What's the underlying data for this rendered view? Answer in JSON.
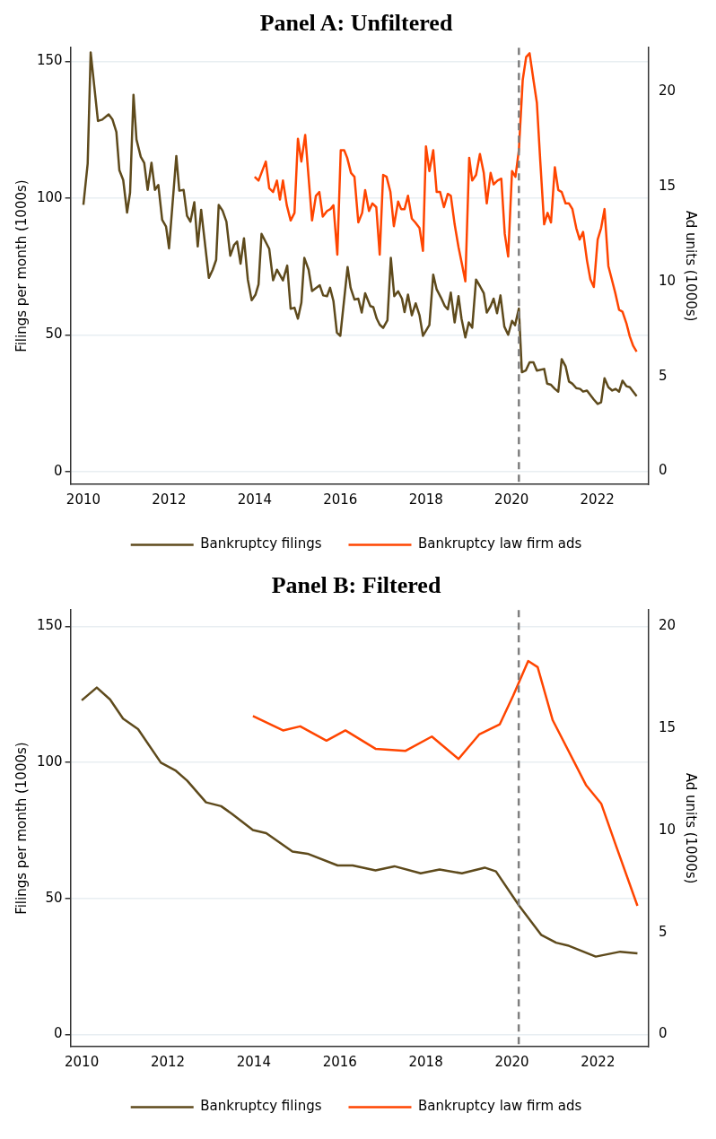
{
  "chart_data": [
    {
      "type": "line",
      "title": "Panel A: Unfiltered",
      "ylabel": "Filings per month (1000s)",
      "y2label": "Ad units (1000s)",
      "xlim": [
        2009.7,
        2023.2
      ],
      "xticks": [
        2010,
        2012,
        2014,
        2016,
        2018,
        2020,
        2022
      ],
      "ylim": [
        -4.7,
        155
      ],
      "yticks": [
        0,
        50,
        100,
        150
      ],
      "y2lim": [
        -0.68,
        22.29
      ],
      "y2ticks": [
        0,
        5,
        10,
        15,
        20
      ],
      "grid": "y",
      "legend": "bottom",
      "marker": "none",
      "line_style": "solid",
      "ref_lines": [
        {
          "axis": "x",
          "value": 2020.17,
          "color": "#7f7f7f",
          "line_style": "dashed"
        }
      ],
      "series": [
        {
          "name": "Bankruptcy filings",
          "color": "#5e4a1c",
          "x": [
            2010.0,
            2010.1,
            2010.17,
            2010.34,
            2010.44,
            2010.59,
            2010.68,
            2010.77,
            2010.84,
            2010.93,
            2011.02,
            2011.09,
            2011.17,
            2011.24,
            2011.34,
            2011.42,
            2011.5,
            2011.59,
            2011.67,
            2011.75,
            2011.84,
            2011.93,
            2012.0,
            2012.17,
            2012.24,
            2012.34,
            2012.42,
            2012.5,
            2012.59,
            2012.67,
            2012.75,
            2012.93,
            2013.02,
            2013.1,
            2013.16,
            2013.25,
            2013.34,
            2013.43,
            2013.52,
            2013.59,
            2013.67,
            2013.75,
            2013.84,
            2013.93,
            2014.02,
            2014.09,
            2014.16,
            2014.34,
            2014.43,
            2014.52,
            2014.66,
            2014.76,
            2014.84,
            2014.93,
            2015.01,
            2015.09,
            2015.16,
            2015.26,
            2015.34,
            2015.52,
            2015.6,
            2015.69,
            2015.76,
            2015.84,
            2015.92,
            2016.0,
            2016.17,
            2016.24,
            2016.33,
            2016.42,
            2016.5,
            2016.58,
            2016.7,
            2016.77,
            2016.85,
            2016.92,
            2017.0,
            2017.1,
            2017.18,
            2017.26,
            2017.35,
            2017.44,
            2017.5,
            2017.58,
            2017.67,
            2017.76,
            2017.85,
            2017.93,
            2018.08,
            2018.17,
            2018.25,
            2018.35,
            2018.44,
            2018.51,
            2018.58,
            2018.67,
            2018.76,
            2018.83,
            2018.92,
            2019.0,
            2019.08,
            2019.17,
            2019.26,
            2019.35,
            2019.42,
            2019.51,
            2019.58,
            2019.66,
            2019.74,
            2019.83,
            2019.92,
            2020.01,
            2020.08,
            2020.17,
            2020.24,
            2020.33,
            2020.42,
            2020.51,
            2020.59,
            2020.76,
            2020.83,
            2020.92,
            2021.01,
            2021.09,
            2021.17,
            2021.26,
            2021.34,
            2021.42,
            2021.51,
            2021.6,
            2021.67,
            2021.76,
            2021.92,
            2022.01,
            2022.09,
            2022.17,
            2022.26,
            2022.35,
            2022.43,
            2022.51,
            2022.59,
            2022.68,
            2022.76,
            2022.92
          ],
          "values": [
            97.5,
            112.6,
            153.3,
            128.2,
            128.7,
            130.6,
            128.7,
            124.2,
            110.2,
            106.6,
            94.7,
            102,
            137.8,
            121.4,
            115.1,
            112.9,
            103,
            112.9,
            103,
            104.8,
            92,
            89.6,
            81.6,
            115.4,
            102.7,
            103,
            93.5,
            91.4,
            98.5,
            82.3,
            95.7,
            70.8,
            73.8,
            77.4,
            97.5,
            95.4,
            91.4,
            78.9,
            82.9,
            84.1,
            76,
            85.3,
            70.2,
            62.6,
            64.7,
            68.4,
            86.9,
            81.4,
            69.9,
            73.8,
            69.9,
            75.3,
            59.5,
            59.9,
            55.9,
            61.7,
            78.1,
            73.8,
            66,
            68.1,
            64.4,
            64.1,
            67.2,
            62.3,
            50.8,
            49.6,
            74.8,
            67.2,
            62.9,
            63.2,
            58.1,
            65.2,
            60.5,
            60.1,
            55.9,
            53.7,
            52.5,
            55.3,
            78.1,
            64.1,
            65.9,
            63.2,
            58.3,
            64.7,
            57.1,
            61.5,
            57.1,
            49.6,
            53.6,
            72,
            66.6,
            63.6,
            60.5,
            59.3,
            65.4,
            54.5,
            64.1,
            55.9,
            49,
            54.5,
            52.6,
            70.2,
            67.8,
            65.2,
            58.1,
            60.5,
            63.2,
            57.9,
            64.4,
            53,
            50,
            55.1,
            53.5,
            59.6,
            36.3,
            36.9,
            39.9,
            39.9,
            36.9,
            37.5,
            32.1,
            31.7,
            30.2,
            29.2,
            41.1,
            38.5,
            32.9,
            32.1,
            30.5,
            30.2,
            29.2,
            29.6,
            26.3,
            24.7,
            25.3,
            34.1,
            30.8,
            29.6,
            30.2,
            29.2,
            33.2,
            31.2,
            30.8,
            27.5
          ]
        },
        {
          "name": "Bankruptcy law firm ads",
          "color": "#ff4500",
          "axis": "y2",
          "x": [
            2014.0,
            2014.09,
            2014.26,
            2014.34,
            2014.43,
            2014.52,
            2014.59,
            2014.66,
            2014.75,
            2014.84,
            2014.93,
            2015.01,
            2015.09,
            2015.18,
            2015.34,
            2015.43,
            2015.51,
            2015.59,
            2015.69,
            2015.77,
            2015.84,
            2015.93,
            2016.01,
            2016.09,
            2016.16,
            2016.25,
            2016.33,
            2016.42,
            2016.51,
            2016.58,
            2016.67,
            2016.75,
            2016.84,
            2016.92,
            2017.0,
            2017.08,
            2017.17,
            2017.25,
            2017.35,
            2017.42,
            2017.5,
            2017.58,
            2017.67,
            2017.75,
            2017.85,
            2017.93,
            2018.0,
            2018.08,
            2018.17,
            2018.25,
            2018.33,
            2018.42,
            2018.51,
            2018.58,
            2018.67,
            2018.76,
            2018.85,
            2018.92,
            2019.01,
            2019.08,
            2019.17,
            2019.26,
            2019.35,
            2019.42,
            2019.51,
            2019.58,
            2019.67,
            2019.76,
            2019.84,
            2019.92,
            2020.01,
            2020.09,
            2020.17,
            2020.26,
            2020.34,
            2020.42,
            2020.51,
            2020.59,
            2020.67,
            2020.76,
            2020.84,
            2020.92,
            2021.01,
            2021.09,
            2021.17,
            2021.26,
            2021.34,
            2021.42,
            2021.51,
            2021.59,
            2021.67,
            2021.76,
            2021.84,
            2021.92,
            2022.01,
            2022.09,
            2022.17,
            2022.26,
            2022.34,
            2022.42,
            2022.51,
            2022.59,
            2022.68,
            2022.76,
            2022.84,
            2022.92
          ],
          "values": [
            15.5,
            15.3,
            16.3,
            14.9,
            14.7,
            15.3,
            14.3,
            15.3,
            14.0,
            13.2,
            13.6,
            17.5,
            16.3,
            17.7,
            13.2,
            14.5,
            14.7,
            13.4,
            13.7,
            13.8,
            14.0,
            11.4,
            16.9,
            16.9,
            16.5,
            15.7,
            15.5,
            13.1,
            13.6,
            14.8,
            13.7,
            14.1,
            13.9,
            11.4,
            15.6,
            15.5,
            14.7,
            12.9,
            14.2,
            13.8,
            13.8,
            14.5,
            13.3,
            13.1,
            12.8,
            11.6,
            17.1,
            15.8,
            16.9,
            14.7,
            14.7,
            13.9,
            14.6,
            14.5,
            13.0,
            11.8,
            10.8,
            10.0,
            16.5,
            15.3,
            15.6,
            16.7,
            15.7,
            14.1,
            15.7,
            15.1,
            15.3,
            15.4,
            12.5,
            11.3,
            15.8,
            15.5,
            16.9,
            20.6,
            21.8,
            22.0,
            20.6,
            19.4,
            16.3,
            13.0,
            13.6,
            13.1,
            16.0,
            14.8,
            14.7,
            14.1,
            14.1,
            13.8,
            12.8,
            12.2,
            12.6,
            11.1,
            10.1,
            9.7,
            12.2,
            12.8,
            13.8,
            10.8,
            10.1,
            9.4,
            8.5,
            8.4,
            7.8,
            7.1,
            6.6,
            6.3
          ]
        }
      ]
    },
    {
      "type": "line",
      "title": "Panel B: Filtered",
      "ylabel": "Filings per month (1000s)",
      "y2label": "Ad units (1000s)",
      "xlim": [
        2009.74,
        2023.18
      ],
      "xticks": [
        2010,
        2012,
        2014,
        2016,
        2018,
        2020,
        2022
      ],
      "ylim": [
        -4.5,
        156
      ],
      "yticks": [
        0,
        50,
        100,
        150
      ],
      "y2lim": [
        -0.6,
        20.8
      ],
      "y2ticks": [
        0,
        5,
        10,
        15,
        20
      ],
      "grid": "y",
      "legend": "bottom",
      "marker": "none",
      "line_style": "solid",
      "ref_lines": [
        {
          "axis": "x",
          "value": 2020.16,
          "color": "#7f7f7f",
          "line_style": "dashed"
        }
      ],
      "series": [
        {
          "name": "Bankruptcy filings",
          "color": "#5e4a1c",
          "x": [
            2010.0,
            2010.35,
            2010.66,
            2010.96,
            2011.31,
            2011.84,
            2012.19,
            2012.45,
            2012.89,
            2013.24,
            2013.5,
            2013.98,
            2014.29,
            2014.9,
            2015.25,
            2015.95,
            2016.3,
            2016.83,
            2017.27,
            2017.88,
            2018.32,
            2018.84,
            2019.37,
            2019.63,
            2020.16,
            2020.68,
            2021.03,
            2021.3,
            2021.95,
            2022.52,
            2022.92
          ],
          "values": [
            122.8,
            127.5,
            123.1,
            116.1,
            112.2,
            99.9,
            96.9,
            93.3,
            85.3,
            83.9,
            81,
            75.1,
            74,
            67.2,
            66.4,
            62.1,
            62.1,
            60.3,
            61.8,
            59.2,
            60.6,
            59.2,
            61.3,
            59.9,
            47.5,
            36.6,
            33.7,
            32.7,
            28.6,
            30.4,
            29.8
          ]
        },
        {
          "name": "Bankruptcy law firm ads",
          "color": "#ff4500",
          "axis": "y2",
          "x": [
            2013.98,
            2014.68,
            2015.08,
            2015.69,
            2016.13,
            2016.83,
            2017.53,
            2018.14,
            2018.76,
            2019.24,
            2019.72,
            2020.03,
            2020.38,
            2020.6,
            2020.95,
            2021.73,
            2022.08,
            2022.43,
            2022.92
          ],
          "values": [
            15.6,
            14.9,
            15.1,
            14.4,
            14.9,
            14.0,
            13.9,
            14.6,
            13.5,
            14.7,
            15.2,
            16.6,
            18.3,
            18.0,
            15.4,
            12.2,
            11.3,
            9.2,
            6.3
          ]
        }
      ]
    }
  ]
}
